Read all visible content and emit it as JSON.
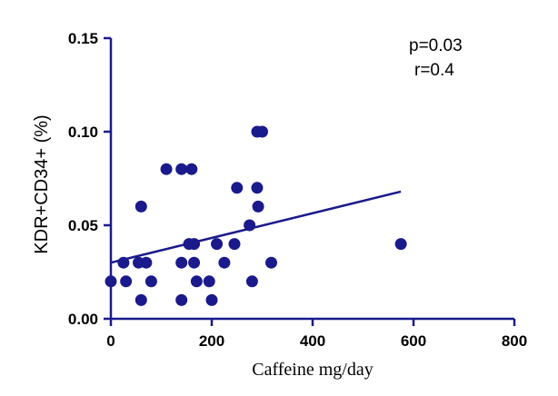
{
  "chart_data": {
    "type": "scatter",
    "title": "",
    "xlabel": "Caffeine mg/day",
    "ylabel": "KDR+CD34+ (%)",
    "xlim": [
      0,
      800
    ],
    "ylim": [
      0,
      0.15
    ],
    "x_ticks": [
      0,
      200,
      400,
      600,
      800
    ],
    "x_tick_labels": [
      "0",
      "200",
      "400",
      "600",
      "800"
    ],
    "y_ticks": [
      0,
      0.05,
      0.1,
      0.15
    ],
    "y_tick_labels": [
      "0.00",
      "0.05",
      "0.10",
      "0.15"
    ],
    "grid": false,
    "colors": {
      "points": "#1a1a8c",
      "line": "#1a1a8c",
      "axis": "#1a1a8c"
    },
    "series": [
      {
        "points": [
          [
            0,
            0.02
          ],
          [
            25,
            0.03
          ],
          [
            30,
            0.02
          ],
          [
            55,
            0.03
          ],
          [
            60,
            0.06
          ],
          [
            60,
            0.01
          ],
          [
            70,
            0.03
          ],
          [
            80,
            0.02
          ],
          [
            110,
            0.08
          ],
          [
            140,
            0.08
          ],
          [
            140,
            0.03
          ],
          [
            140,
            0.01
          ],
          [
            155,
            0.04
          ],
          [
            160,
            0.08
          ],
          [
            165,
            0.04
          ],
          [
            165,
            0.03
          ],
          [
            170,
            0.02
          ],
          [
            195,
            0.02
          ],
          [
            200,
            0.01
          ],
          [
            210,
            0.04
          ],
          [
            225,
            0.03
          ],
          [
            245,
            0.04
          ],
          [
            250,
            0.07
          ],
          [
            275,
            0.05
          ],
          [
            280,
            0.02
          ],
          [
            290,
            0.1
          ],
          [
            290,
            0.07
          ],
          [
            292,
            0.06
          ],
          [
            300,
            0.1
          ],
          [
            318,
            0.03
          ],
          [
            575,
            0.04
          ]
        ]
      }
    ],
    "regression": {
      "x": [
        0,
        575
      ],
      "y": [
        0.03,
        0.068
      ]
    },
    "annotations": [
      "p=0.03",
      "r=0.4"
    ]
  }
}
